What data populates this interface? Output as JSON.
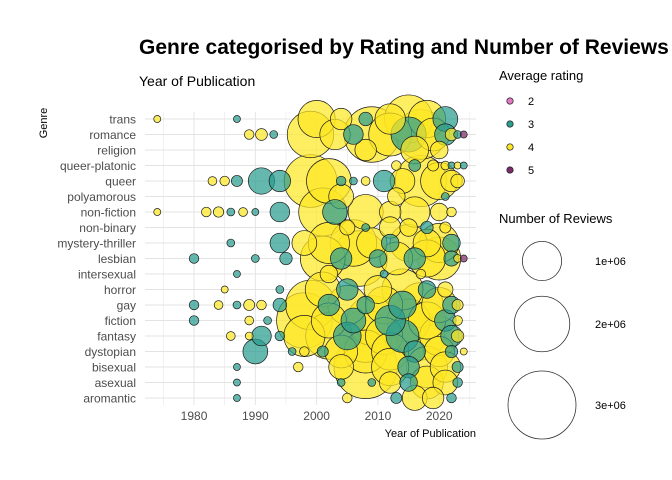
{
  "chart_data": {
    "type": "scatter",
    "title": "Genre categorised by Rating and Number of Reviews",
    "subtitle": "Year of Publication",
    "xlabel": "Year of Publication",
    "ylabel": "Genre",
    "xlim": [
      1972,
      2026
    ],
    "x_ticks": [
      1980,
      1990,
      2000,
      2010,
      2020
    ],
    "categories": [
      "aromantic",
      "asexual",
      "bisexual",
      "dystopian",
      "fantasy",
      "fiction",
      "gay",
      "horror",
      "intersexual",
      "lesbian",
      "mystery-thriller",
      "non-binary",
      "non-fiction",
      "polyamorous",
      "queer",
      "queer-platonic",
      "religion",
      "romance",
      "trans"
    ],
    "grid": true,
    "colors": {
      "2": "#e377c2",
      "3": "#2a9d8f",
      "4": "#fde725",
      "5": "#7b2d6b"
    },
    "legend_color": {
      "title": "Average rating",
      "position": "right",
      "items": [
        "2",
        "3",
        "4",
        "5"
      ]
    },
    "legend_size": {
      "title": "Number of Reviews",
      "items": [
        {
          "label": "1e+06",
          "value": 1000000
        },
        {
          "label": "2e+06",
          "value": 2000000
        },
        {
          "label": "3e+06",
          "value": 3000000
        }
      ]
    },
    "points": [
      {
        "g": "trans",
        "x": 1974,
        "r": 4,
        "n": 20000
      },
      {
        "g": "trans",
        "x": 1987,
        "r": 3,
        "n": 15000
      },
      {
        "g": "trans",
        "x": 2000,
        "r": 4,
        "n": 900000
      },
      {
        "g": "trans",
        "x": 2004,
        "r": 4,
        "n": 300000
      },
      {
        "g": "trans",
        "x": 2008,
        "r": 3,
        "n": 120000
      },
      {
        "g": "trans",
        "x": 2012,
        "r": 4,
        "n": 600000
      },
      {
        "g": "trans",
        "x": 2015,
        "r": 4,
        "n": 1500000
      },
      {
        "g": "trans",
        "x": 2018,
        "r": 4,
        "n": 900000
      },
      {
        "g": "trans",
        "x": 2021,
        "r": 3,
        "n": 400000
      },
      {
        "g": "romance",
        "x": 1989,
        "r": 4,
        "n": 60000
      },
      {
        "g": "romance",
        "x": 1991,
        "r": 4,
        "n": 90000
      },
      {
        "g": "romance",
        "x": 1993,
        "r": 3,
        "n": 40000
      },
      {
        "g": "romance",
        "x": 1999,
        "r": 4,
        "n": 1400000
      },
      {
        "g": "romance",
        "x": 2003,
        "r": 4,
        "n": 600000
      },
      {
        "g": "romance",
        "x": 2006,
        "r": 3,
        "n": 250000
      },
      {
        "g": "romance",
        "x": 2009,
        "r": 4,
        "n": 2000000
      },
      {
        "g": "romance",
        "x": 2012,
        "r": 4,
        "n": 1200000
      },
      {
        "g": "romance",
        "x": 2015,
        "r": 3,
        "n": 800000
      },
      {
        "g": "romance",
        "x": 2017,
        "r": 4,
        "n": 1600000
      },
      {
        "g": "romance",
        "x": 2019,
        "r": 4,
        "n": 700000
      },
      {
        "g": "romance",
        "x": 2021,
        "r": 3,
        "n": 300000
      },
      {
        "g": "romance",
        "x": 2022,
        "r": 4,
        "n": 100000
      },
      {
        "g": "romance",
        "x": 2023,
        "r": 3,
        "n": 40000
      },
      {
        "g": "romance",
        "x": 2024,
        "r": 5,
        "n": 20000
      },
      {
        "g": "religion",
        "x": 2008,
        "r": 4,
        "n": 300000
      },
      {
        "g": "religion",
        "x": 2016,
        "r": 4,
        "n": 500000
      },
      {
        "g": "religion",
        "x": 2020,
        "r": 4,
        "n": 200000
      },
      {
        "g": "queer-platonic",
        "x": 2013,
        "r": 4,
        "n": 60000
      },
      {
        "g": "queer-platonic",
        "x": 2016,
        "r": 3,
        "n": 90000
      },
      {
        "g": "queer-platonic",
        "x": 2019,
        "r": 4,
        "n": 80000
      },
      {
        "g": "queer-platonic",
        "x": 2021,
        "r": 4,
        "n": 50000
      },
      {
        "g": "queer-platonic",
        "x": 2022,
        "r": 3,
        "n": 30000
      },
      {
        "g": "queer-platonic",
        "x": 2023,
        "r": 4,
        "n": 20000
      },
      {
        "g": "queer-platonic",
        "x": 2024,
        "r": 3,
        "n": 15000
      },
      {
        "g": "queer",
        "x": 1983,
        "r": 4,
        "n": 50000
      },
      {
        "g": "queer",
        "x": 1985,
        "r": 4,
        "n": 60000
      },
      {
        "g": "queer",
        "x": 1987,
        "r": 3,
        "n": 80000
      },
      {
        "g": "queer",
        "x": 1991,
        "r": 3,
        "n": 450000
      },
      {
        "g": "queer",
        "x": 1994,
        "r": 3,
        "n": 300000
      },
      {
        "g": "queer",
        "x": 1999,
        "r": 4,
        "n": 1800000
      },
      {
        "g": "queer",
        "x": 2002,
        "r": 4,
        "n": 1300000
      },
      {
        "g": "queer",
        "x": 2004,
        "r": 3,
        "n": 60000
      },
      {
        "g": "queer",
        "x": 2006,
        "r": 3,
        "n": 40000
      },
      {
        "g": "queer",
        "x": 2008,
        "r": 4,
        "n": 50000
      },
      {
        "g": "queer",
        "x": 2011,
        "r": 3,
        "n": 300000
      },
      {
        "g": "queer",
        "x": 2014,
        "r": 4,
        "n": 400000
      },
      {
        "g": "queer",
        "x": 2017,
        "r": 4,
        "n": 1700000
      },
      {
        "g": "queer",
        "x": 2020,
        "r": 4,
        "n": 900000
      },
      {
        "g": "queer",
        "x": 2022,
        "r": 4,
        "n": 300000
      },
      {
        "g": "queer",
        "x": 2023,
        "r": 4,
        "n": 120000
      },
      {
        "g": "polyamorous",
        "x": 2004,
        "r": 4,
        "n": 400000
      },
      {
        "g": "polyamorous",
        "x": 2013,
        "r": 4,
        "n": 200000
      },
      {
        "g": "polyamorous",
        "x": 2021,
        "r": 3,
        "n": 40000
      },
      {
        "g": "non-fiction",
        "x": 1974,
        "r": 4,
        "n": 15000
      },
      {
        "g": "non-fiction",
        "x": 1982,
        "r": 4,
        "n": 60000
      },
      {
        "g": "non-fiction",
        "x": 1984,
        "r": 4,
        "n": 70000
      },
      {
        "g": "non-fiction",
        "x": 1986,
        "r": 3,
        "n": 40000
      },
      {
        "g": "non-fiction",
        "x": 1988,
        "r": 4,
        "n": 50000
      },
      {
        "g": "non-fiction",
        "x": 1990,
        "r": 3,
        "n": 30000
      },
      {
        "g": "non-fiction",
        "x": 1994,
        "r": 3,
        "n": 250000
      },
      {
        "g": "non-fiction",
        "x": 2001,
        "r": 4,
        "n": 1500000
      },
      {
        "g": "non-fiction",
        "x": 2003,
        "r": 3,
        "n": 400000
      },
      {
        "g": "non-fiction",
        "x": 2008,
        "r": 4,
        "n": 800000
      },
      {
        "g": "non-fiction",
        "x": 2012,
        "r": 4,
        "n": 300000
      },
      {
        "g": "non-fiction",
        "x": 2016,
        "r": 4,
        "n": 600000
      },
      {
        "g": "non-fiction",
        "x": 2020,
        "r": 4,
        "n": 200000
      },
      {
        "g": "non-fiction",
        "x": 2022,
        "r": 4,
        "n": 60000
      },
      {
        "g": "non-binary",
        "x": 2005,
        "r": 4,
        "n": 150000
      },
      {
        "g": "non-binary",
        "x": 2008,
        "r": 3,
        "n": 40000
      },
      {
        "g": "non-binary",
        "x": 2012,
        "r": 4,
        "n": 300000
      },
      {
        "g": "non-binary",
        "x": 2015,
        "r": 4,
        "n": 200000
      },
      {
        "g": "non-binary",
        "x": 2018,
        "r": 3,
        "n": 100000
      },
      {
        "g": "non-binary",
        "x": 2021,
        "r": 4,
        "n": 80000
      },
      {
        "g": "mystery-thriller",
        "x": 1986,
        "r": 3,
        "n": 40000
      },
      {
        "g": "mystery-thriller",
        "x": 1994,
        "r": 3,
        "n": 250000
      },
      {
        "g": "mystery-thriller",
        "x": 1998,
        "r": 4,
        "n": 400000
      },
      {
        "g": "mystery-thriller",
        "x": 2002,
        "r": 4,
        "n": 1100000
      },
      {
        "g": "mystery-thriller",
        "x": 2006,
        "r": 4,
        "n": 1400000
      },
      {
        "g": "mystery-thriller",
        "x": 2009,
        "r": 4,
        "n": 600000
      },
      {
        "g": "mystery-thriller",
        "x": 2012,
        "r": 3,
        "n": 200000
      },
      {
        "g": "mystery-thriller",
        "x": 2015,
        "r": 4,
        "n": 900000
      },
      {
        "g": "mystery-thriller",
        "x": 2018,
        "r": 4,
        "n": 500000
      },
      {
        "g": "mystery-thriller",
        "x": 2020,
        "r": 4,
        "n": 1000000
      },
      {
        "g": "mystery-thriller",
        "x": 2022,
        "r": 3,
        "n": 200000
      },
      {
        "g": "lesbian",
        "x": 1980,
        "r": 3,
        "n": 60000
      },
      {
        "g": "lesbian",
        "x": 1990,
        "r": 3,
        "n": 40000
      },
      {
        "g": "lesbian",
        "x": 1995,
        "r": 3,
        "n": 100000
      },
      {
        "g": "lesbian",
        "x": 2001,
        "r": 4,
        "n": 1300000
      },
      {
        "g": "lesbian",
        "x": 2004,
        "r": 3,
        "n": 300000
      },
      {
        "g": "lesbian",
        "x": 2007,
        "r": 4,
        "n": 2000000
      },
      {
        "g": "lesbian",
        "x": 2010,
        "r": 3,
        "n": 200000
      },
      {
        "g": "lesbian",
        "x": 2013,
        "r": 4,
        "n": 700000
      },
      {
        "g": "lesbian",
        "x": 2016,
        "r": 3,
        "n": 300000
      },
      {
        "g": "lesbian",
        "x": 2018,
        "r": 4,
        "n": 900000
      },
      {
        "g": "lesbian",
        "x": 2020,
        "r": 4,
        "n": 1200000
      },
      {
        "g": "lesbian",
        "x": 2022,
        "r": 3,
        "n": 150000
      },
      {
        "g": "lesbian",
        "x": 2023,
        "r": 4,
        "n": 40000
      },
      {
        "g": "lesbian",
        "x": 2024,
        "r": 5,
        "n": 20000
      },
      {
        "g": "intersexual",
        "x": 1987,
        "r": 3,
        "n": 15000
      },
      {
        "g": "intersexual",
        "x": 2002,
        "r": 4,
        "n": 200000
      },
      {
        "g": "intersexual",
        "x": 2011,
        "r": 3,
        "n": 40000
      },
      {
        "g": "intersexual",
        "x": 2017,
        "r": 4,
        "n": 60000
      },
      {
        "g": "horror",
        "x": 1985,
        "r": 4,
        "n": 30000
      },
      {
        "g": "horror",
        "x": 1994,
        "r": 3,
        "n": 40000
      },
      {
        "g": "horror",
        "x": 2001,
        "r": 4,
        "n": 800000
      },
      {
        "g": "horror",
        "x": 2005,
        "r": 3,
        "n": 300000
      },
      {
        "g": "horror",
        "x": 2010,
        "r": 4,
        "n": 500000
      },
      {
        "g": "horror",
        "x": 2014,
        "r": 4,
        "n": 1100000
      },
      {
        "g": "horror",
        "x": 2018,
        "r": 3,
        "n": 200000
      },
      {
        "g": "horror",
        "x": 2021,
        "r": 4,
        "n": 150000
      },
      {
        "g": "gay",
        "x": 1980,
        "r": 3,
        "n": 60000
      },
      {
        "g": "gay",
        "x": 1984,
        "r": 4,
        "n": 50000
      },
      {
        "g": "gay",
        "x": 1987,
        "r": 3,
        "n": 40000
      },
      {
        "g": "gay",
        "x": 1989,
        "r": 4,
        "n": 80000
      },
      {
        "g": "gay",
        "x": 1991,
        "r": 4,
        "n": 60000
      },
      {
        "g": "gay",
        "x": 1994,
        "r": 3,
        "n": 120000
      },
      {
        "g": "gay",
        "x": 1999,
        "r": 4,
        "n": 1600000
      },
      {
        "g": "gay",
        "x": 2002,
        "r": 3,
        "n": 300000
      },
      {
        "g": "gay",
        "x": 2005,
        "r": 4,
        "n": 1000000
      },
      {
        "g": "gay",
        "x": 2008,
        "r": 3,
        "n": 200000
      },
      {
        "g": "gay",
        "x": 2011,
        "r": 4,
        "n": 900000
      },
      {
        "g": "gay",
        "x": 2014,
        "r": 3,
        "n": 500000
      },
      {
        "g": "gay",
        "x": 2017,
        "r": 4,
        "n": 1300000
      },
      {
        "g": "gay",
        "x": 2020,
        "r": 4,
        "n": 800000
      },
      {
        "g": "gay",
        "x": 2022,
        "r": 3,
        "n": 200000
      },
      {
        "g": "gay",
        "x": 2023,
        "r": 4,
        "n": 80000
      },
      {
        "g": "fiction",
        "x": 1980,
        "r": 3,
        "n": 60000
      },
      {
        "g": "fiction",
        "x": 1989,
        "r": 4,
        "n": 50000
      },
      {
        "g": "fiction",
        "x": 1992,
        "r": 3,
        "n": 40000
      },
      {
        "g": "fiction",
        "x": 1998,
        "r": 4,
        "n": 2000000
      },
      {
        "g": "fiction",
        "x": 2002,
        "r": 4,
        "n": 800000
      },
      {
        "g": "fiction",
        "x": 2006,
        "r": 3,
        "n": 400000
      },
      {
        "g": "fiction",
        "x": 2009,
        "r": 4,
        "n": 1600000
      },
      {
        "g": "fiction",
        "x": 2012,
        "r": 3,
        "n": 600000
      },
      {
        "g": "fiction",
        "x": 2015,
        "r": 4,
        "n": 1200000
      },
      {
        "g": "fiction",
        "x": 2018,
        "r": 4,
        "n": 900000
      },
      {
        "g": "fiction",
        "x": 2021,
        "r": 3,
        "n": 300000
      },
      {
        "g": "fiction",
        "x": 2023,
        "r": 4,
        "n": 60000
      },
      {
        "g": "fantasy",
        "x": 1986,
        "r": 4,
        "n": 50000
      },
      {
        "g": "fantasy",
        "x": 1989,
        "r": 4,
        "n": 40000
      },
      {
        "g": "fantasy",
        "x": 1991,
        "r": 3,
        "n": 250000
      },
      {
        "g": "fantasy",
        "x": 1994,
        "r": 3,
        "n": 60000
      },
      {
        "g": "fantasy",
        "x": 1998,
        "r": 4,
        "n": 1100000
      },
      {
        "g": "fantasy",
        "x": 2002,
        "r": 4,
        "n": 1400000
      },
      {
        "g": "fantasy",
        "x": 2005,
        "r": 3,
        "n": 500000
      },
      {
        "g": "fantasy",
        "x": 2008,
        "r": 4,
        "n": 1800000
      },
      {
        "g": "fantasy",
        "x": 2011,
        "r": 4,
        "n": 900000
      },
      {
        "g": "fantasy",
        "x": 2014,
        "r": 3,
        "n": 700000
      },
      {
        "g": "fantasy",
        "x": 2017,
        "r": 4,
        "n": 1500000
      },
      {
        "g": "fantasy",
        "x": 2020,
        "r": 4,
        "n": 1000000
      },
      {
        "g": "fantasy",
        "x": 2022,
        "r": 3,
        "n": 300000
      },
      {
        "g": "fantasy",
        "x": 2023,
        "r": 4,
        "n": 100000
      },
      {
        "g": "dystopian",
        "x": 1990,
        "r": 3,
        "n": 400000
      },
      {
        "g": "dystopian",
        "x": 1996,
        "r": 3,
        "n": 40000
      },
      {
        "g": "dystopian",
        "x": 1998,
        "r": 4,
        "n": 60000
      },
      {
        "g": "dystopian",
        "x": 2001,
        "r": 3,
        "n": 80000
      },
      {
        "g": "dystopian",
        "x": 2004,
        "r": 4,
        "n": 700000
      },
      {
        "g": "dystopian",
        "x": 2008,
        "r": 4,
        "n": 1200000
      },
      {
        "g": "dystopian",
        "x": 2012,
        "r": 4,
        "n": 900000
      },
      {
        "g": "dystopian",
        "x": 2016,
        "r": 3,
        "n": 300000
      },
      {
        "g": "dystopian",
        "x": 2020,
        "r": 4,
        "n": 600000
      },
      {
        "g": "dystopian",
        "x": 2022,
        "r": 3,
        "n": 100000
      },
      {
        "g": "dystopian",
        "x": 2024,
        "r": 4,
        "n": 20000
      },
      {
        "g": "bisexual",
        "x": 1987,
        "r": 3,
        "n": 15000
      },
      {
        "g": "bisexual",
        "x": 1997,
        "r": 4,
        "n": 60000
      },
      {
        "g": "bisexual",
        "x": 2004,
        "r": 4,
        "n": 400000
      },
      {
        "g": "bisexual",
        "x": 2008,
        "r": 4,
        "n": 2600000
      },
      {
        "g": "bisexual",
        "x": 2012,
        "r": 4,
        "n": 900000
      },
      {
        "g": "bisexual",
        "x": 2015,
        "r": 3,
        "n": 300000
      },
      {
        "g": "bisexual",
        "x": 2018,
        "r": 4,
        "n": 1100000
      },
      {
        "g": "bisexual",
        "x": 2021,
        "r": 4,
        "n": 600000
      },
      {
        "g": "bisexual",
        "x": 2023,
        "r": 3,
        "n": 80000
      },
      {
        "g": "asexual",
        "x": 1987,
        "r": 3,
        "n": 15000
      },
      {
        "g": "asexual",
        "x": 2004,
        "r": 3,
        "n": 40000
      },
      {
        "g": "asexual",
        "x": 2009,
        "r": 3,
        "n": 40000
      },
      {
        "g": "asexual",
        "x": 2012,
        "r": 4,
        "n": 300000
      },
      {
        "g": "asexual",
        "x": 2015,
        "r": 3,
        "n": 200000
      },
      {
        "g": "asexual",
        "x": 2018,
        "r": 4,
        "n": 700000
      },
      {
        "g": "asexual",
        "x": 2021,
        "r": 4,
        "n": 400000
      },
      {
        "g": "asexual",
        "x": 2023,
        "r": 3,
        "n": 60000
      },
      {
        "g": "aromantic",
        "x": 1987,
        "r": 3,
        "n": 15000
      },
      {
        "g": "aromantic",
        "x": 2005,
        "r": 4,
        "n": 60000
      },
      {
        "g": "aromantic",
        "x": 2013,
        "r": 3,
        "n": 80000
      },
      {
        "g": "aromantic",
        "x": 2016,
        "r": 4,
        "n": 400000
      },
      {
        "g": "aromantic",
        "x": 2019,
        "r": 4,
        "n": 300000
      },
      {
        "g": "aromantic",
        "x": 2022,
        "r": 3,
        "n": 60000
      }
    ]
  }
}
